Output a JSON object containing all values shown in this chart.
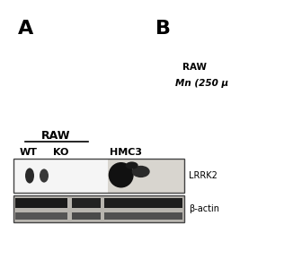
{
  "panel_A_label": "A",
  "panel_B_label": "B",
  "raw_label": "RAW",
  "wt_label": "WT",
  "ko_label": "KO",
  "hmc3_label": "HMC3",
  "lrrk2_label": "LRRK2",
  "beta_actin_label": "β-actin",
  "raw_upper_label": "RAW",
  "mn_upper_label": "Mn (250 μ",
  "bg_color": "#ffffff",
  "blot_bg_light": "#f0f0f0",
  "blot_bg_white": "#e8e8e8",
  "blot_bg_dark": "#c0bdb8",
  "band_dark": "#1a1a1a",
  "band_mid": "#555555",
  "blot_border": "#444444",
  "panel_fontsize": 16,
  "label_fontsize": 8
}
